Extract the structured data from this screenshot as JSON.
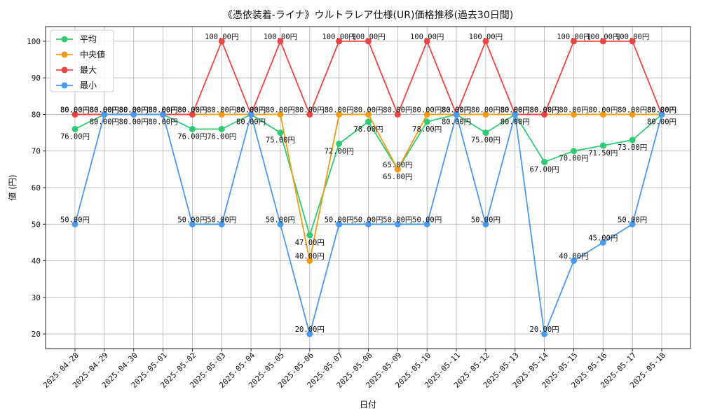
{
  "chart_data": {
    "type": "line",
    "title": "《憑依装着-ライナ》ウルトラレア仕様(UR)価格推移(過去30日間)",
    "xlabel": "日付",
    "ylabel": "値 (円)",
    "ylim": [
      16,
      104
    ],
    "yticks": [
      20,
      30,
      40,
      50,
      60,
      70,
      80,
      90,
      100
    ],
    "grid": true,
    "legend_position": "top-left",
    "value_suffix": "円",
    "categories": [
      "2025-04-28",
      "2025-04-29",
      "2025-04-30",
      "2025-05-01",
      "2025-05-02",
      "2025-05-03",
      "2025-05-04",
      "2025-05-05",
      "2025-05-06",
      "2025-05-07",
      "2025-05-08",
      "2025-05-09",
      "2025-05-10",
      "2025-05-11",
      "2025-05-12",
      "2025-05-13",
      "2025-05-14",
      "2025-05-15",
      "2025-05-16",
      "2025-05-17",
      "2025-05-18"
    ],
    "series": [
      {
        "name": "平均",
        "color": "#2ecc71",
        "values": [
          76,
          80,
          80,
          80,
          76,
          76,
          80,
          75,
          47,
          72,
          78,
          65,
          78,
          80,
          75,
          80,
          67,
          70,
          71.5,
          73,
          80
        ]
      },
      {
        "name": "中央値",
        "color": "#f39c12",
        "values": [
          80,
          80,
          80,
          80,
          80,
          80,
          80,
          80,
          40,
          80,
          80,
          65,
          80,
          80,
          80,
          80,
          80,
          80,
          80,
          80,
          80
        ]
      },
      {
        "name": "最大",
        "color": "#ef4444",
        "values": [
          80,
          80,
          80,
          80,
          80,
          100,
          80,
          100,
          80,
          100,
          100,
          80,
          100,
          80,
          100,
          80,
          80,
          100,
          100,
          100,
          80
        ]
      },
      {
        "name": "最小",
        "color": "#4a9af0",
        "values": [
          50,
          80,
          80,
          80,
          50,
          50,
          80,
          50,
          20,
          50,
          50,
          50,
          50,
          80,
          50,
          80,
          20,
          40,
          45,
          50,
          80
        ]
      }
    ]
  }
}
